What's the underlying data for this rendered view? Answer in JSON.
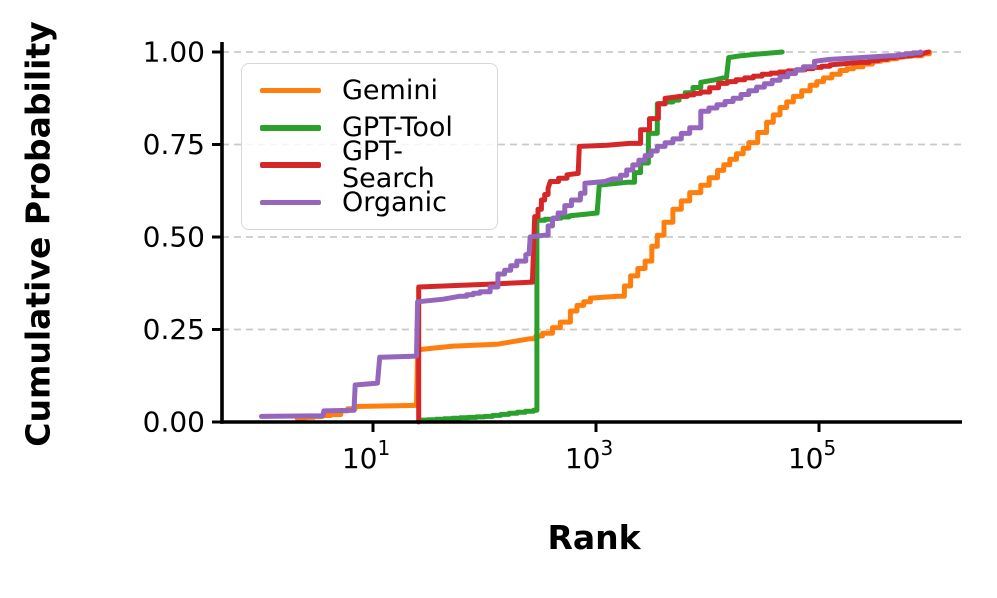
{
  "figure": {
    "xlabel": "Rank",
    "ylabel": "Cumulative Probability",
    "background": "#ffffff",
    "spine_color": "#000000",
    "grid_color": "#c9c9c9",
    "legend_border_color": "#d8d8d8"
  },
  "chart_data": {
    "type": "line",
    "variant": "ecdf-step",
    "title": "",
    "xlabel": "Rank",
    "ylabel": "Cumulative Probability",
    "xscale": "log10",
    "xlim_log10": [
      -0.35,
      6.28
    ],
    "ylim": [
      0.0,
      1.0
    ],
    "grid": {
      "axis": "y",
      "style": "dashed",
      "color": "#c9c9c9"
    },
    "legend_position": "upper-left",
    "xticks": [
      {
        "log10": 1,
        "base": "10",
        "exp": "1"
      },
      {
        "log10": 3,
        "base": "10",
        "exp": "3"
      },
      {
        "log10": 5,
        "base": "10",
        "exp": "5"
      }
    ],
    "yticks": [
      {
        "value": 0.0,
        "label": "0.00"
      },
      {
        "value": 0.25,
        "label": "0.25"
      },
      {
        "value": 0.5,
        "label": "0.50"
      },
      {
        "value": 0.75,
        "label": "0.75"
      },
      {
        "value": 1.0,
        "label": "1.00"
      }
    ],
    "series": [
      {
        "name": "Gemini",
        "color": "#ff7f0e",
        "points_log10x_prob": [
          [
            0.32,
            0.01
          ],
          [
            0.62,
            0.02
          ],
          [
            0.71,
            0.03
          ],
          [
            0.84,
            0.042
          ],
          [
            1.39,
            0.045
          ],
          [
            1.4,
            0.195
          ],
          [
            1.55,
            0.2
          ],
          [
            1.72,
            0.205
          ],
          [
            2.11,
            0.21
          ],
          [
            2.27,
            0.218
          ],
          [
            2.4,
            0.225
          ],
          [
            2.52,
            0.24
          ],
          [
            2.61,
            0.255
          ],
          [
            2.68,
            0.27
          ],
          [
            2.77,
            0.3
          ],
          [
            2.83,
            0.315
          ],
          [
            2.95,
            0.335
          ],
          [
            3.2,
            0.34
          ],
          [
            3.31,
            0.395
          ],
          [
            3.44,
            0.435
          ],
          [
            3.5,
            0.475
          ],
          [
            3.55,
            0.505
          ],
          [
            3.61,
            0.54
          ],
          [
            3.69,
            0.575
          ],
          [
            3.84,
            0.62
          ],
          [
            3.94,
            0.64
          ],
          [
            4.09,
            0.68
          ],
          [
            4.2,
            0.71
          ],
          [
            4.32,
            0.74
          ],
          [
            4.37,
            0.755
          ],
          [
            4.53,
            0.81
          ],
          [
            4.65,
            0.85
          ],
          [
            4.77,
            0.88
          ],
          [
            4.92,
            0.91
          ],
          [
            5.04,
            0.93
          ],
          [
            5.19,
            0.95
          ],
          [
            5.31,
            0.96
          ],
          [
            5.48,
            0.975
          ],
          [
            5.7,
            0.985
          ],
          [
            5.86,
            0.99
          ],
          [
            5.99,
            1.0
          ]
        ]
      },
      {
        "name": "GPT-Tool",
        "color": "#2ca02c",
        "points_log10x_prob": [
          [
            1.42,
            0.005
          ],
          [
            2.0,
            0.015
          ],
          [
            2.44,
            0.032
          ],
          [
            2.47,
            0.545
          ],
          [
            2.76,
            0.557
          ],
          [
            3.01,
            0.565
          ],
          [
            3.03,
            0.64
          ],
          [
            3.29,
            0.648
          ],
          [
            3.4,
            0.7
          ],
          [
            3.47,
            0.78
          ],
          [
            3.55,
            0.86
          ],
          [
            3.69,
            0.87
          ],
          [
            3.8,
            0.89
          ],
          [
            3.94,
            0.918
          ],
          [
            4.07,
            0.925
          ],
          [
            4.17,
            0.932
          ],
          [
            4.19,
            0.985
          ],
          [
            4.3,
            0.99
          ],
          [
            4.47,
            0.995
          ],
          [
            4.67,
            1.0
          ]
        ]
      },
      {
        "name": "GPT-Search",
        "color": "#d62728",
        "points_log10x_prob": [
          [
            1.41,
            0.0
          ],
          [
            1.41,
            0.365
          ],
          [
            2.0,
            0.372
          ],
          [
            2.43,
            0.378
          ],
          [
            2.45,
            0.555
          ],
          [
            2.48,
            0.575
          ],
          [
            2.51,
            0.6
          ],
          [
            2.54,
            0.615
          ],
          [
            2.57,
            0.632
          ],
          [
            2.59,
            0.65
          ],
          [
            2.74,
            0.668
          ],
          [
            2.84,
            0.672
          ],
          [
            2.85,
            0.745
          ],
          [
            3.1,
            0.748
          ],
          [
            3.3,
            0.753
          ],
          [
            3.4,
            0.79
          ],
          [
            3.48,
            0.82
          ],
          [
            3.56,
            0.86
          ],
          [
            3.62,
            0.875
          ],
          [
            3.76,
            0.88
          ],
          [
            3.94,
            0.892
          ],
          [
            4.1,
            0.915
          ],
          [
            4.49,
            0.94
          ],
          [
            4.8,
            0.952
          ],
          [
            5.1,
            0.965
          ],
          [
            5.37,
            0.972
          ],
          [
            5.61,
            0.985
          ],
          [
            5.91,
            0.995
          ],
          [
            5.98,
            1.0
          ]
        ]
      },
      {
        "name": "Organic",
        "color": "#9467bd",
        "points_log10x_prob": [
          [
            0.0,
            0.015
          ],
          [
            0.55,
            0.017
          ],
          [
            0.56,
            0.03
          ],
          [
            0.83,
            0.032
          ],
          [
            0.84,
            0.1
          ],
          [
            1.04,
            0.105
          ],
          [
            1.06,
            0.175
          ],
          [
            1.39,
            0.178
          ],
          [
            1.4,
            0.325
          ],
          [
            1.63,
            0.332
          ],
          [
            1.78,
            0.34
          ],
          [
            1.96,
            0.352
          ],
          [
            2.05,
            0.365
          ],
          [
            2.12,
            0.4
          ],
          [
            2.18,
            0.41
          ],
          [
            2.29,
            0.435
          ],
          [
            2.37,
            0.452
          ],
          [
            2.4,
            0.455
          ],
          [
            2.41,
            0.5
          ],
          [
            2.54,
            0.505
          ],
          [
            2.57,
            0.53
          ],
          [
            2.61,
            0.55
          ],
          [
            2.66,
            0.565
          ],
          [
            2.72,
            0.585
          ],
          [
            2.78,
            0.6
          ],
          [
            2.86,
            0.618
          ],
          [
            2.9,
            0.645
          ],
          [
            3.08,
            0.65
          ],
          [
            3.15,
            0.657
          ],
          [
            3.22,
            0.667
          ],
          [
            3.33,
            0.695
          ],
          [
            3.44,
            0.72
          ],
          [
            3.55,
            0.745
          ],
          [
            3.69,
            0.765
          ],
          [
            3.84,
            0.795
          ],
          [
            3.94,
            0.84
          ],
          [
            4.23,
            0.875
          ],
          [
            4.44,
            0.905
          ],
          [
            4.65,
            0.933
          ],
          [
            4.86,
            0.96
          ],
          [
            4.96,
            0.975
          ],
          [
            5.1,
            0.98
          ],
          [
            5.37,
            0.985
          ],
          [
            5.64,
            0.99
          ],
          [
            5.91,
            1.0
          ]
        ]
      }
    ]
  }
}
